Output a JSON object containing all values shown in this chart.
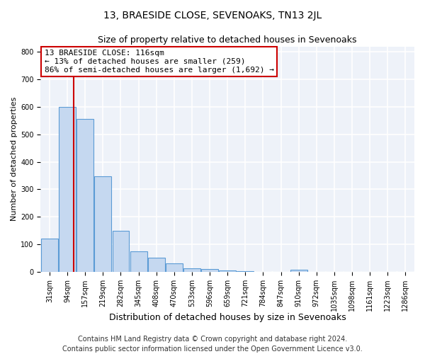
{
  "title": "13, BRAESIDE CLOSE, SEVENOAKS, TN13 2JL",
  "subtitle": "Size of property relative to detached houses in Sevenoaks",
  "xlabel": "Distribution of detached houses by size in Sevenoaks",
  "ylabel": "Number of detached properties",
  "bar_values": [
    122,
    601,
    556,
    347,
    150,
    75,
    52,
    30,
    13,
    10,
    5,
    2,
    0,
    0,
    7,
    0,
    0,
    0,
    0,
    0,
    0
  ],
  "bar_labels": [
    "31sqm",
    "94sqm",
    "157sqm",
    "219sqm",
    "282sqm",
    "345sqm",
    "408sqm",
    "470sqm",
    "533sqm",
    "596sqm",
    "659sqm",
    "721sqm",
    "784sqm",
    "847sqm",
    "910sqm",
    "972sqm",
    "1035sqm",
    "1098sqm",
    "1161sqm",
    "1223sqm",
    "1286sqm"
  ],
  "bar_color": "#c5d8f0",
  "bar_edge_color": "#5b9bd5",
  "annotation_line1": "13 BRAESIDE CLOSE: 116sqm",
  "annotation_line2": "← 13% of detached houses are smaller (259)",
  "annotation_line3": "86% of semi-detached houses are larger (1,692) →",
  "annotation_box_color": "#ffffff",
  "annotation_box_edge_color": "#cc0000",
  "vline_color": "#cc0000",
  "property_sqm": 116,
  "bin_edges": [
    31,
    94,
    157,
    219,
    282,
    345,
    408,
    470,
    533,
    596,
    659,
    721,
    784,
    847,
    910,
    972,
    1035,
    1098,
    1161,
    1223,
    1286,
    1349
  ],
  "ylim": [
    0,
    820
  ],
  "yticks": [
    0,
    100,
    200,
    300,
    400,
    500,
    600,
    700,
    800
  ],
  "footer_line1": "Contains HM Land Registry data © Crown copyright and database right 2024.",
  "footer_line2": "Contains public sector information licensed under the Open Government Licence v3.0.",
  "background_color": "#eef2f9",
  "grid_color": "#ffffff",
  "title_fontsize": 10,
  "subtitle_fontsize": 9,
  "xlabel_fontsize": 9,
  "ylabel_fontsize": 8,
  "tick_fontsize": 7,
  "annotation_fontsize": 8,
  "footer_fontsize": 7
}
